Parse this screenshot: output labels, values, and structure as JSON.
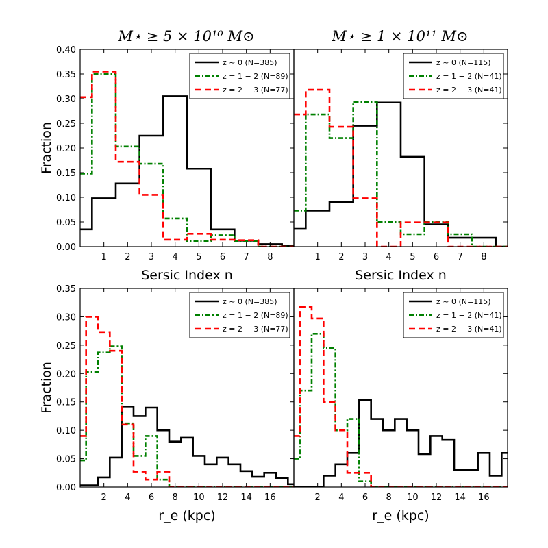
{
  "column_titles": [
    "M⋆ ≥ 5 × 10¹⁰ M⊙",
    "M⋆ ≥ 1 × 10¹¹ M⊙"
  ],
  "series_styles": [
    {
      "color": "#000000",
      "dash": ""
    },
    {
      "color": "#008000",
      "dash": "7,3,2,3"
    },
    {
      "color": "#ff0000",
      "dash": "9,5"
    }
  ],
  "chart_data": [
    {
      "type": "step-histogram",
      "row": "top",
      "col": "left",
      "xlabel": "Sersic Index n",
      "ylabel": "Fraction",
      "xlim": [
        0,
        9
      ],
      "ylim": [
        0,
        0.4
      ],
      "xticks": [
        1,
        2,
        3,
        4,
        5,
        6,
        7,
        8
      ],
      "xtick_labels": [
        "1",
        "2",
        "3",
        "4",
        "5",
        "6",
        "7",
        "8"
      ],
      "yticks": [
        0,
        0.05,
        0.1,
        0.15,
        0.2,
        0.25,
        0.3,
        0.35,
        0.4
      ],
      "ytick_labels": [
        "0.00",
        "0.05",
        "0.10",
        "0.15",
        "0.20",
        "0.25",
        "0.30",
        "0.35",
        "0.40"
      ],
      "bin_edges": [
        0,
        0.5,
        1.5,
        2.5,
        3.5,
        4.5,
        5.5,
        6.5,
        7.5,
        8.5,
        9
      ],
      "series": [
        {
          "name": "z ~ 0 (N=385)",
          "values": [
            0.035,
            0.098,
            0.128,
            0.225,
            0.305,
            0.158,
            0.035,
            0.012,
            0.005,
            0.002
          ]
        },
        {
          "name": "z = 1 − 2 (N=89)",
          "values": [
            0.148,
            0.35,
            0.203,
            0.168,
            0.057,
            0.011,
            0.023,
            0.011,
            0,
            0
          ]
        },
        {
          "name": "z = 2 − 3 (N=77)",
          "values": [
            0.303,
            0.355,
            0.172,
            0.105,
            0.014,
            0.026,
            0.014,
            0.013,
            0,
            0
          ]
        }
      ]
    },
    {
      "type": "step-histogram",
      "row": "top",
      "col": "right",
      "xlabel": "Sersic Index n",
      "ylabel": "",
      "xlim": [
        0,
        9
      ],
      "ylim": [
        0,
        0.4
      ],
      "xticks": [
        1,
        2,
        3,
        4,
        5,
        6,
        7,
        8
      ],
      "xtick_labels": [
        "1",
        "2",
        "3",
        "4",
        "5",
        "6",
        "7",
        "8"
      ],
      "yticks": [],
      "ytick_labels": [],
      "bin_edges": [
        0,
        0.5,
        1.5,
        2.5,
        3.5,
        4.5,
        5.5,
        6.5,
        7.5,
        8.5,
        9
      ],
      "series": [
        {
          "name": "z ~ 0 (N=115)",
          "values": [
            0.036,
            0.073,
            0.09,
            0.245,
            0.292,
            0.182,
            0.045,
            0.018,
            0.018,
            0
          ]
        },
        {
          "name": "z = 1 − 2 (N=41)",
          "values": [
            0.073,
            0.268,
            0.22,
            0.293,
            0.05,
            0.025,
            0.05,
            0.025,
            0,
            0
          ]
        },
        {
          "name": "z = 2 − 3 (N=41)",
          "values": [
            0.268,
            0.318,
            0.243,
            0.098,
            0,
            0.049,
            0.049,
            0,
            0,
            0
          ]
        }
      ]
    },
    {
      "type": "step-histogram",
      "row": "bottom",
      "col": "left",
      "xlabel": "r_e (kpc)",
      "ylabel": "Fraction",
      "xlim": [
        0,
        18
      ],
      "ylim": [
        0,
        0.35
      ],
      "xticks": [
        2,
        4,
        6,
        8,
        10,
        12,
        14,
        16
      ],
      "xtick_labels": [
        "2",
        "4",
        "6",
        "8",
        "10",
        "12",
        "14",
        "16"
      ],
      "yticks": [
        0,
        0.05,
        0.1,
        0.15,
        0.2,
        0.25,
        0.3,
        0.35
      ],
      "ytick_labels": [
        "0.00",
        "0.05",
        "0.10",
        "0.15",
        "0.20",
        "0.25",
        "0.30",
        "0.35"
      ],
      "bin_edges": [
        0,
        0.5,
        1.5,
        2.5,
        3.5,
        4.5,
        5.5,
        6.5,
        7.5,
        8.5,
        9.5,
        10.5,
        11.5,
        12.5,
        13.5,
        14.5,
        15.5,
        16.5,
        17.5,
        18
      ],
      "series": [
        {
          "name": "z ~ 0 (N=385)",
          "values": [
            0.003,
            0.003,
            0.017,
            0.052,
            0.142,
            0.125,
            0.14,
            0.1,
            0.08,
            0.087,
            0.055,
            0.04,
            0.052,
            0.04,
            0.028,
            0.018,
            0.025,
            0.016,
            0.005
          ]
        },
        {
          "name": "z = 1 − 2 (N=89)",
          "values": [
            0.047,
            0.203,
            0.237,
            0.248,
            0.112,
            0.055,
            0.09,
            0.013,
            0,
            0,
            0,
            0,
            0,
            0,
            0,
            0,
            0,
            0,
            0
          ]
        },
        {
          "name": "z = 2 − 3 (N=77)",
          "values": [
            0.09,
            0.3,
            0.273,
            0.24,
            0.11,
            0.027,
            0.013,
            0.027,
            0,
            0,
            0,
            0,
            0,
            0,
            0,
            0,
            0,
            0,
            0
          ]
        }
      ]
    },
    {
      "type": "step-histogram",
      "row": "bottom",
      "col": "right",
      "xlabel": "r_e (kpc)",
      "ylabel": "",
      "xlim": [
        0,
        18
      ],
      "ylim": [
        0,
        0.35
      ],
      "xticks": [
        2,
        4,
        6,
        8,
        10,
        12,
        14,
        16
      ],
      "xtick_labels": [
        "2",
        "4",
        "6",
        "8",
        "10",
        "12",
        "14",
        "16"
      ],
      "yticks": [],
      "ytick_labels": [],
      "bin_edges": [
        0,
        0.5,
        1.5,
        2.5,
        3.5,
        4.5,
        5.5,
        6.5,
        7.5,
        8.5,
        9.5,
        10.5,
        11.5,
        12.5,
        13.5,
        14.5,
        15.5,
        16.5,
        17.5,
        18
      ],
      "series": [
        {
          "name": "z ~ 0 (N=115)",
          "values": [
            0,
            0,
            0,
            0.02,
            0.04,
            0.06,
            0.153,
            0.12,
            0.1,
            0.12,
            0.1,
            0.058,
            0.09,
            0.083,
            0.03,
            0.03,
            0.06,
            0.02,
            0.06
          ]
        },
        {
          "name": "z = 1 − 2 (N=41)",
          "values": [
            0.05,
            0.17,
            0.27,
            0.245,
            0.1,
            0.12,
            0.01,
            0,
            0,
            0,
            0,
            0,
            0,
            0,
            0,
            0,
            0,
            0,
            0
          ]
        },
        {
          "name": "z = 2 − 3 (N=41)",
          "values": [
            0.09,
            0.317,
            0.297,
            0.15,
            0.1,
            0.025,
            0.025,
            0,
            0,
            0,
            0,
            0,
            0,
            0,
            0,
            0,
            0,
            0,
            0
          ]
        }
      ]
    }
  ]
}
